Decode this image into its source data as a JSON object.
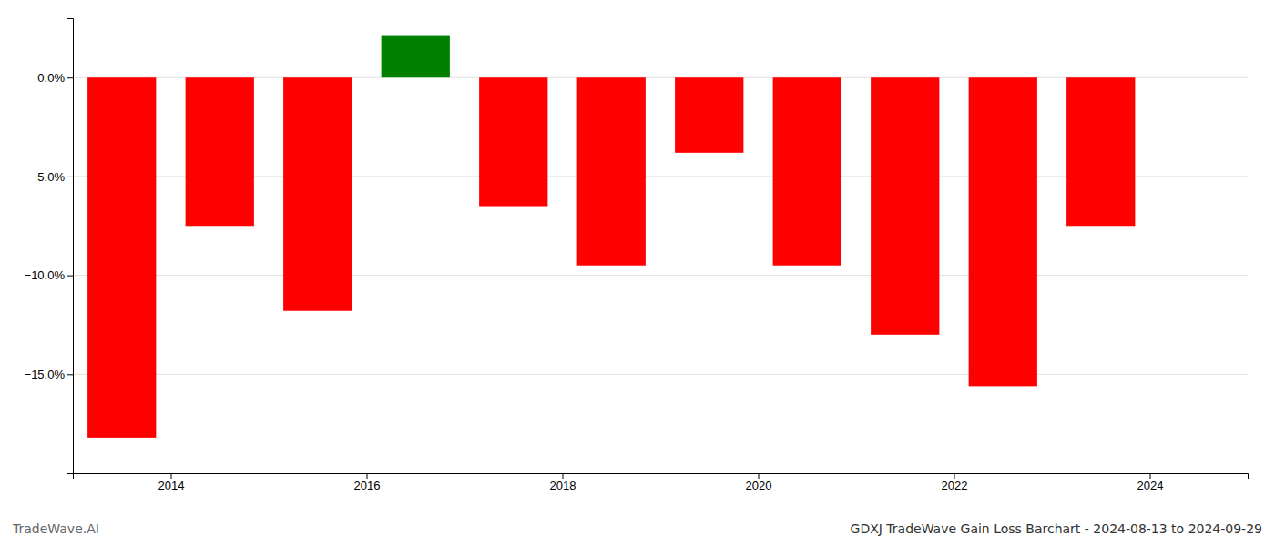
{
  "chart_data": {
    "type": "bar",
    "title": "GDXJ TradeWave Gain Loss Barchart - 2024-08-13 to 2024-09-29",
    "annotations": [
      "TradeWave.AI"
    ],
    "x": [
      2013.5,
      2014.5,
      2015.5,
      2016.5,
      2017.5,
      2018.5,
      2019.5,
      2020.5,
      2021.5,
      2022.5,
      2023.5
    ],
    "values": [
      -18.2,
      -7.5,
      -11.8,
      2.1,
      -6.5,
      -9.5,
      -3.8,
      -9.5,
      -13.0,
      -15.6,
      -7.5
    ],
    "colors": [
      "#ff0000",
      "#ff0000",
      "#ff0000",
      "#008000",
      "#ff0000",
      "#ff0000",
      "#ff0000",
      "#ff0000",
      "#ff0000",
      "#ff0000",
      "#ff0000"
    ],
    "xlim": [
      2013,
      2025
    ],
    "xticks": [
      2014,
      2016,
      2018,
      2020,
      2022,
      2024
    ],
    "ylim": [
      -20,
      3
    ],
    "yticks": [
      {
        "value": 0.0,
        "label": "0.0%"
      },
      {
        "value": -5.0,
        "label": "−5.0%"
      },
      {
        "value": -10.0,
        "label": "−10.0%"
      },
      {
        "value": -15.0,
        "label": "−15.0%"
      }
    ],
    "grid": true
  }
}
